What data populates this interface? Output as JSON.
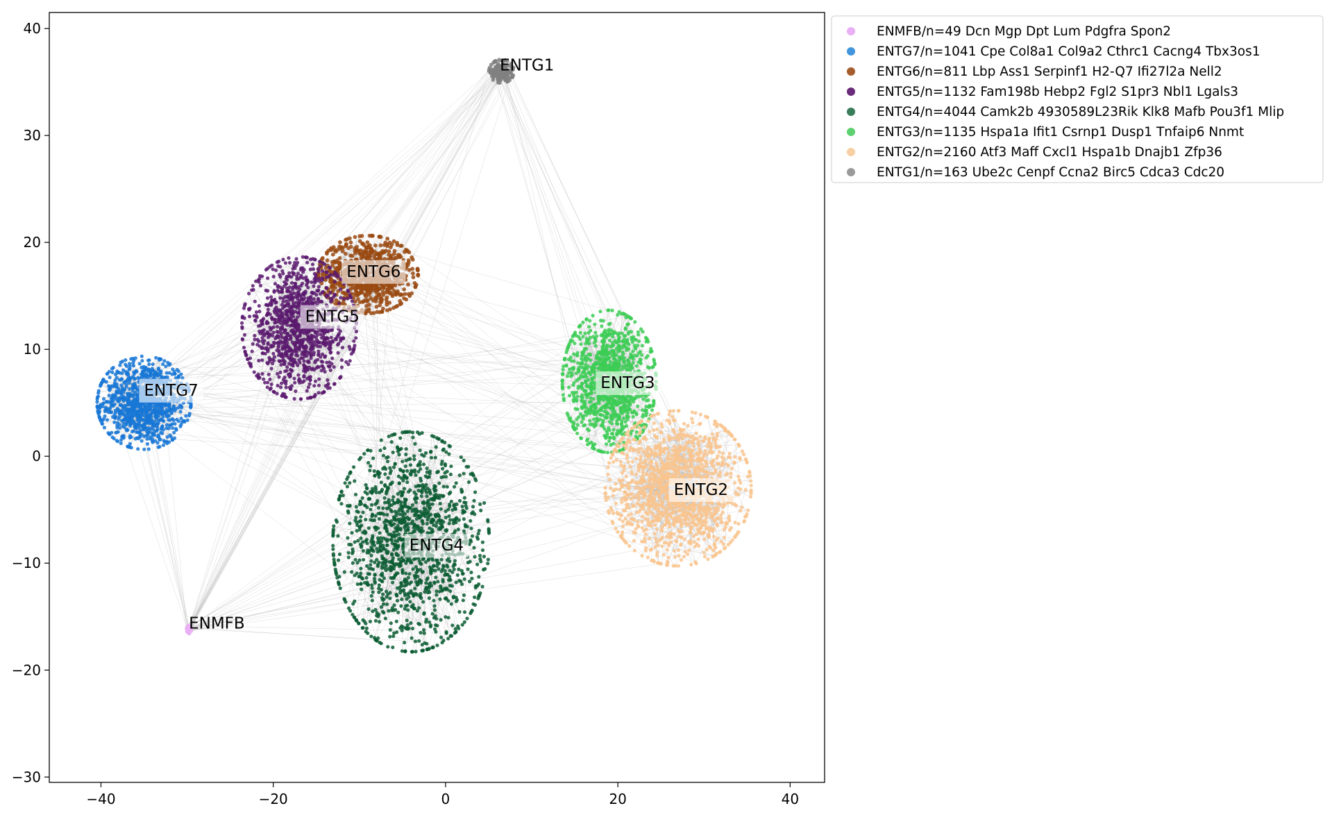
{
  "chart_data": {
    "type": "scatter",
    "title": "",
    "xlabel": "",
    "ylabel": "",
    "xlim": [
      -46,
      44
    ],
    "ylim": [
      -30.5,
      41.5
    ],
    "xticks": [
      -40,
      -20,
      0,
      20,
      40
    ],
    "yticks": [
      -30,
      -20,
      -10,
      0,
      10,
      20,
      30,
      40
    ],
    "xtick_labels": [
      "−40",
      "−20",
      "0",
      "20",
      "40"
    ],
    "ytick_labels": [
      "−30",
      "−20",
      "−10",
      "0",
      "10",
      "20",
      "30",
      "40"
    ],
    "grid": false,
    "legend_position": "outside-upper-right",
    "edges_color": "#b0b0b0",
    "series": [
      {
        "name": "ENMFB/n=49 Dcn Mgp Dpt Lum Pdgfra Spon2",
        "cluster": "ENMFB",
        "n": 49,
        "center": [
          -29.8,
          -16.2
        ],
        "spread": [
          0.25,
          0.4
        ],
        "color": "#eab0f5",
        "legend_color": "#eab0f5"
      },
      {
        "name": "ENTG7/n=1041 Cpe Col8a1 Col9a2 Cthrc1 Cacng4 Tbx3os1",
        "cluster": "ENTG7",
        "n": 1041,
        "center": [
          -35,
          5
        ],
        "spread": [
          4.5,
          3.6
        ],
        "color": "#1877d6",
        "legend_color": "#4395dc"
      },
      {
        "name": "ENTG6/n=811 Lbp Ass1 Serpinf1 H2-Q7 Ifi27l2a Nell2",
        "cluster": "ENTG6",
        "n": 811,
        "center": [
          -9,
          17
        ],
        "spread": [
          4.8,
          3.0
        ],
        "color": "#9a4a12",
        "legend_color": "#a65d2e"
      },
      {
        "name": "ENTG5/n=1132 Fam198b Hebp2 Fgl2 S1pr3 Nbl1 Lgals3",
        "cluster": "ENTG5",
        "n": 1132,
        "center": [
          -17,
          12
        ],
        "spread": [
          5.5,
          5.5
        ],
        "color": "#5a1a6e",
        "legend_color": "#6b2d7b"
      },
      {
        "name": "ENTG4/n=4044 Camk2b 4930589L23Rik Klk8 Mafb Pou3f1 Mlip",
        "cluster": "ENTG4",
        "n": 4044,
        "center": [
          -4,
          -8
        ],
        "spread": [
          7.5,
          8.5
        ],
        "color": "#0a5c33",
        "legend_color": "#3a7d5a"
      },
      {
        "name": "ENTG3/n=1135 Hspa1a Ifit1 Csrnp1 Dusp1 Tnfaip6 Nnmt",
        "cluster": "ENTG3",
        "n": 1135,
        "center": [
          19,
          7
        ],
        "spread": [
          4.5,
          5.5
        ],
        "color": "#3ccc55",
        "legend_color": "#5fd170"
      },
      {
        "name": "ENTG2/n=2160 Atf3 Maff Cxcl1 Hspa1b Dnajb1 Zfp36",
        "cluster": "ENTG2",
        "n": 2160,
        "center": [
          27,
          -3
        ],
        "spread": [
          7.0,
          6.0
        ],
        "color": "#f9c48e",
        "legend_color": "#f7cfa2"
      },
      {
        "name": "ENTG1/n=163 Ube2c Cenpf Ccna2 Birc5 Cdca3 Cdc20",
        "cluster": "ENTG1",
        "n": 163,
        "center": [
          6.5,
          36
        ],
        "spread": [
          1.2,
          0.9
        ],
        "color": "#808080",
        "legend_color": "#9a9a9a"
      }
    ],
    "annotations": [
      {
        "text": "ENTG1",
        "x": 6.3,
        "y": 36.5,
        "boxed": false
      },
      {
        "text": "ENTG6",
        "x": -11.5,
        "y": 17.2,
        "boxed": true
      },
      {
        "text": "ENTG5",
        "x": -16.3,
        "y": 13.0,
        "boxed": true
      },
      {
        "text": "ENTG7",
        "x": -35.0,
        "y": 6.1,
        "boxed": true
      },
      {
        "text": "ENTG3",
        "x": 18.0,
        "y": 6.8,
        "boxed": true
      },
      {
        "text": "ENTG2",
        "x": 26.5,
        "y": -3.2,
        "boxed": true
      },
      {
        "text": "ENTG4",
        "x": -4.2,
        "y": -8.4,
        "boxed": true
      },
      {
        "text": "ENMFB",
        "x": -29.8,
        "y": -15.7,
        "boxed": false
      }
    ]
  }
}
